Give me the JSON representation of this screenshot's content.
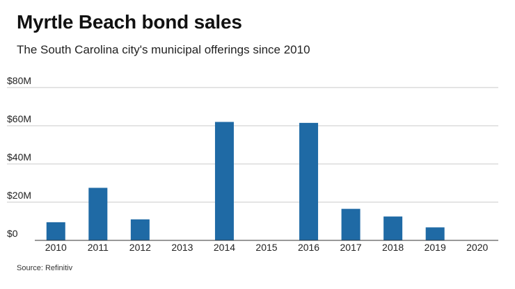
{
  "header": {
    "title": "Myrtle Beach bond sales",
    "subtitle": "The South Carolina city's municipal offerings since 2010"
  },
  "footer": {
    "source": "Source: Refinitiv"
  },
  "colors": {
    "bar": "#1f6aa5",
    "grid": "#c8c8c8",
    "axis": "#333333"
  },
  "chart_data": {
    "type": "bar",
    "title": "Myrtle Beach bond sales",
    "subtitle": "The South Carolina city's municipal offerings since 2010",
    "categories": [
      "2010",
      "2011",
      "2012",
      "2013",
      "2014",
      "2015",
      "2016",
      "2017",
      "2018",
      "2019",
      "2020"
    ],
    "values": [
      9.5,
      27.5,
      11,
      0,
      62,
      0,
      61.5,
      16.5,
      12.5,
      6.8,
      0
    ],
    "unit": "M USD",
    "ylim": [
      0,
      80
    ],
    "yticks": [
      0,
      20,
      40,
      60,
      80
    ],
    "ytick_labels": [
      "$0",
      "$20M",
      "$40M",
      "$60M",
      "$80M"
    ],
    "grid": true,
    "legend": "none",
    "source": "Source: Refinitiv"
  }
}
